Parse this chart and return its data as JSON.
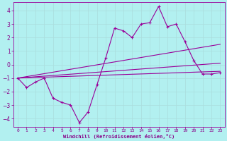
{
  "background_color": "#b2f0f0",
  "grid_color": "#aadddd",
  "line_color": "#990099",
  "xlabel": "Windchill (Refroidissement éolien,°C)",
  "xlabel_color": "#880088",
  "tick_color": "#880088",
  "xlim": [
    -0.5,
    23.5
  ],
  "ylim": [
    -4.6,
    4.6
  ],
  "yticks": [
    -4,
    -3,
    -2,
    -1,
    0,
    1,
    2,
    3,
    4
  ],
  "xticks": [
    0,
    1,
    2,
    3,
    4,
    5,
    6,
    7,
    8,
    9,
    10,
    11,
    12,
    13,
    14,
    15,
    16,
    17,
    18,
    19,
    20,
    21,
    22,
    23
  ],
  "series1_x": [
    0,
    1,
    2,
    3,
    4,
    5,
    6,
    7,
    8,
    9,
    10,
    11,
    12,
    13,
    14,
    15,
    16,
    17,
    18,
    19,
    20,
    21,
    22,
    23
  ],
  "series1_y": [
    -1,
    -1.7,
    -1.3,
    -1.0,
    -2.5,
    -2.8,
    -3.0,
    -4.3,
    -3.5,
    -1.5,
    0.5,
    2.7,
    2.5,
    2.0,
    3.0,
    3.1,
    4.3,
    2.8,
    3.0,
    1.7,
    0.3,
    -0.7,
    -0.7,
    -0.6
  ],
  "trend1_x": [
    0,
    23
  ],
  "trend1_y": [
    -1.0,
    1.5
  ],
  "trend2_x": [
    0,
    23
  ],
  "trend2_y": [
    -1.0,
    0.1
  ],
  "trend3_x": [
    0,
    23
  ],
  "trend3_y": [
    -1.0,
    -0.5
  ]
}
